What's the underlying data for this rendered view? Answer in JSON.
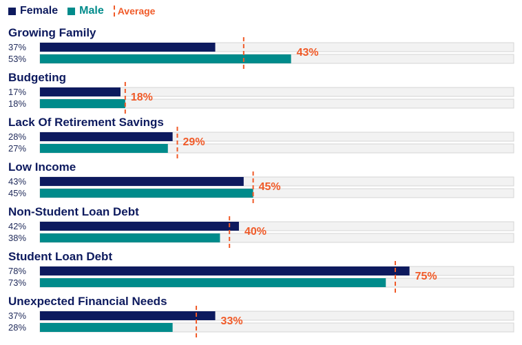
{
  "legend": {
    "female": "Female",
    "male": "Male",
    "average": "Average"
  },
  "colors": {
    "female": "#0d1a5e",
    "male": "#008b8b",
    "average": "#f05a28",
    "track": "#f2f2f2",
    "track_border": "#d4d4d4",
    "category_text": "#0d1a5e",
    "value_text": "#1f2a5a"
  },
  "chart_data": {
    "type": "bar",
    "orientation": "horizontal",
    "xlim": [
      0,
      100
    ],
    "grid": false,
    "legend_position": "top-left",
    "categories": [
      "Growing Family",
      "Budgeting",
      "Lack Of Retirement Savings",
      "Low Income",
      "Non-Student Loan Debt",
      "Student Loan Debt",
      "Unexpected Financial Needs"
    ],
    "series": [
      {
        "name": "Female",
        "values": [
          37,
          17,
          28,
          43,
          42,
          78,
          37
        ]
      },
      {
        "name": "Male",
        "values": [
          53,
          18,
          27,
          45,
          38,
          73,
          28
        ]
      },
      {
        "name": "Average",
        "values": [
          43,
          18,
          29,
          45,
          40,
          75,
          33
        ]
      }
    ],
    "value_labels": {
      "female": [
        "37%",
        "17%",
        "28%",
        "43%",
        "42%",
        "78%",
        "37%"
      ],
      "male": [
        "53%",
        "18%",
        "27%",
        "45%",
        "38%",
        "73%",
        "28%"
      ],
      "average": [
        "43%",
        "18%",
        "29%",
        "45%",
        "40%",
        "75%",
        "33%"
      ]
    }
  }
}
